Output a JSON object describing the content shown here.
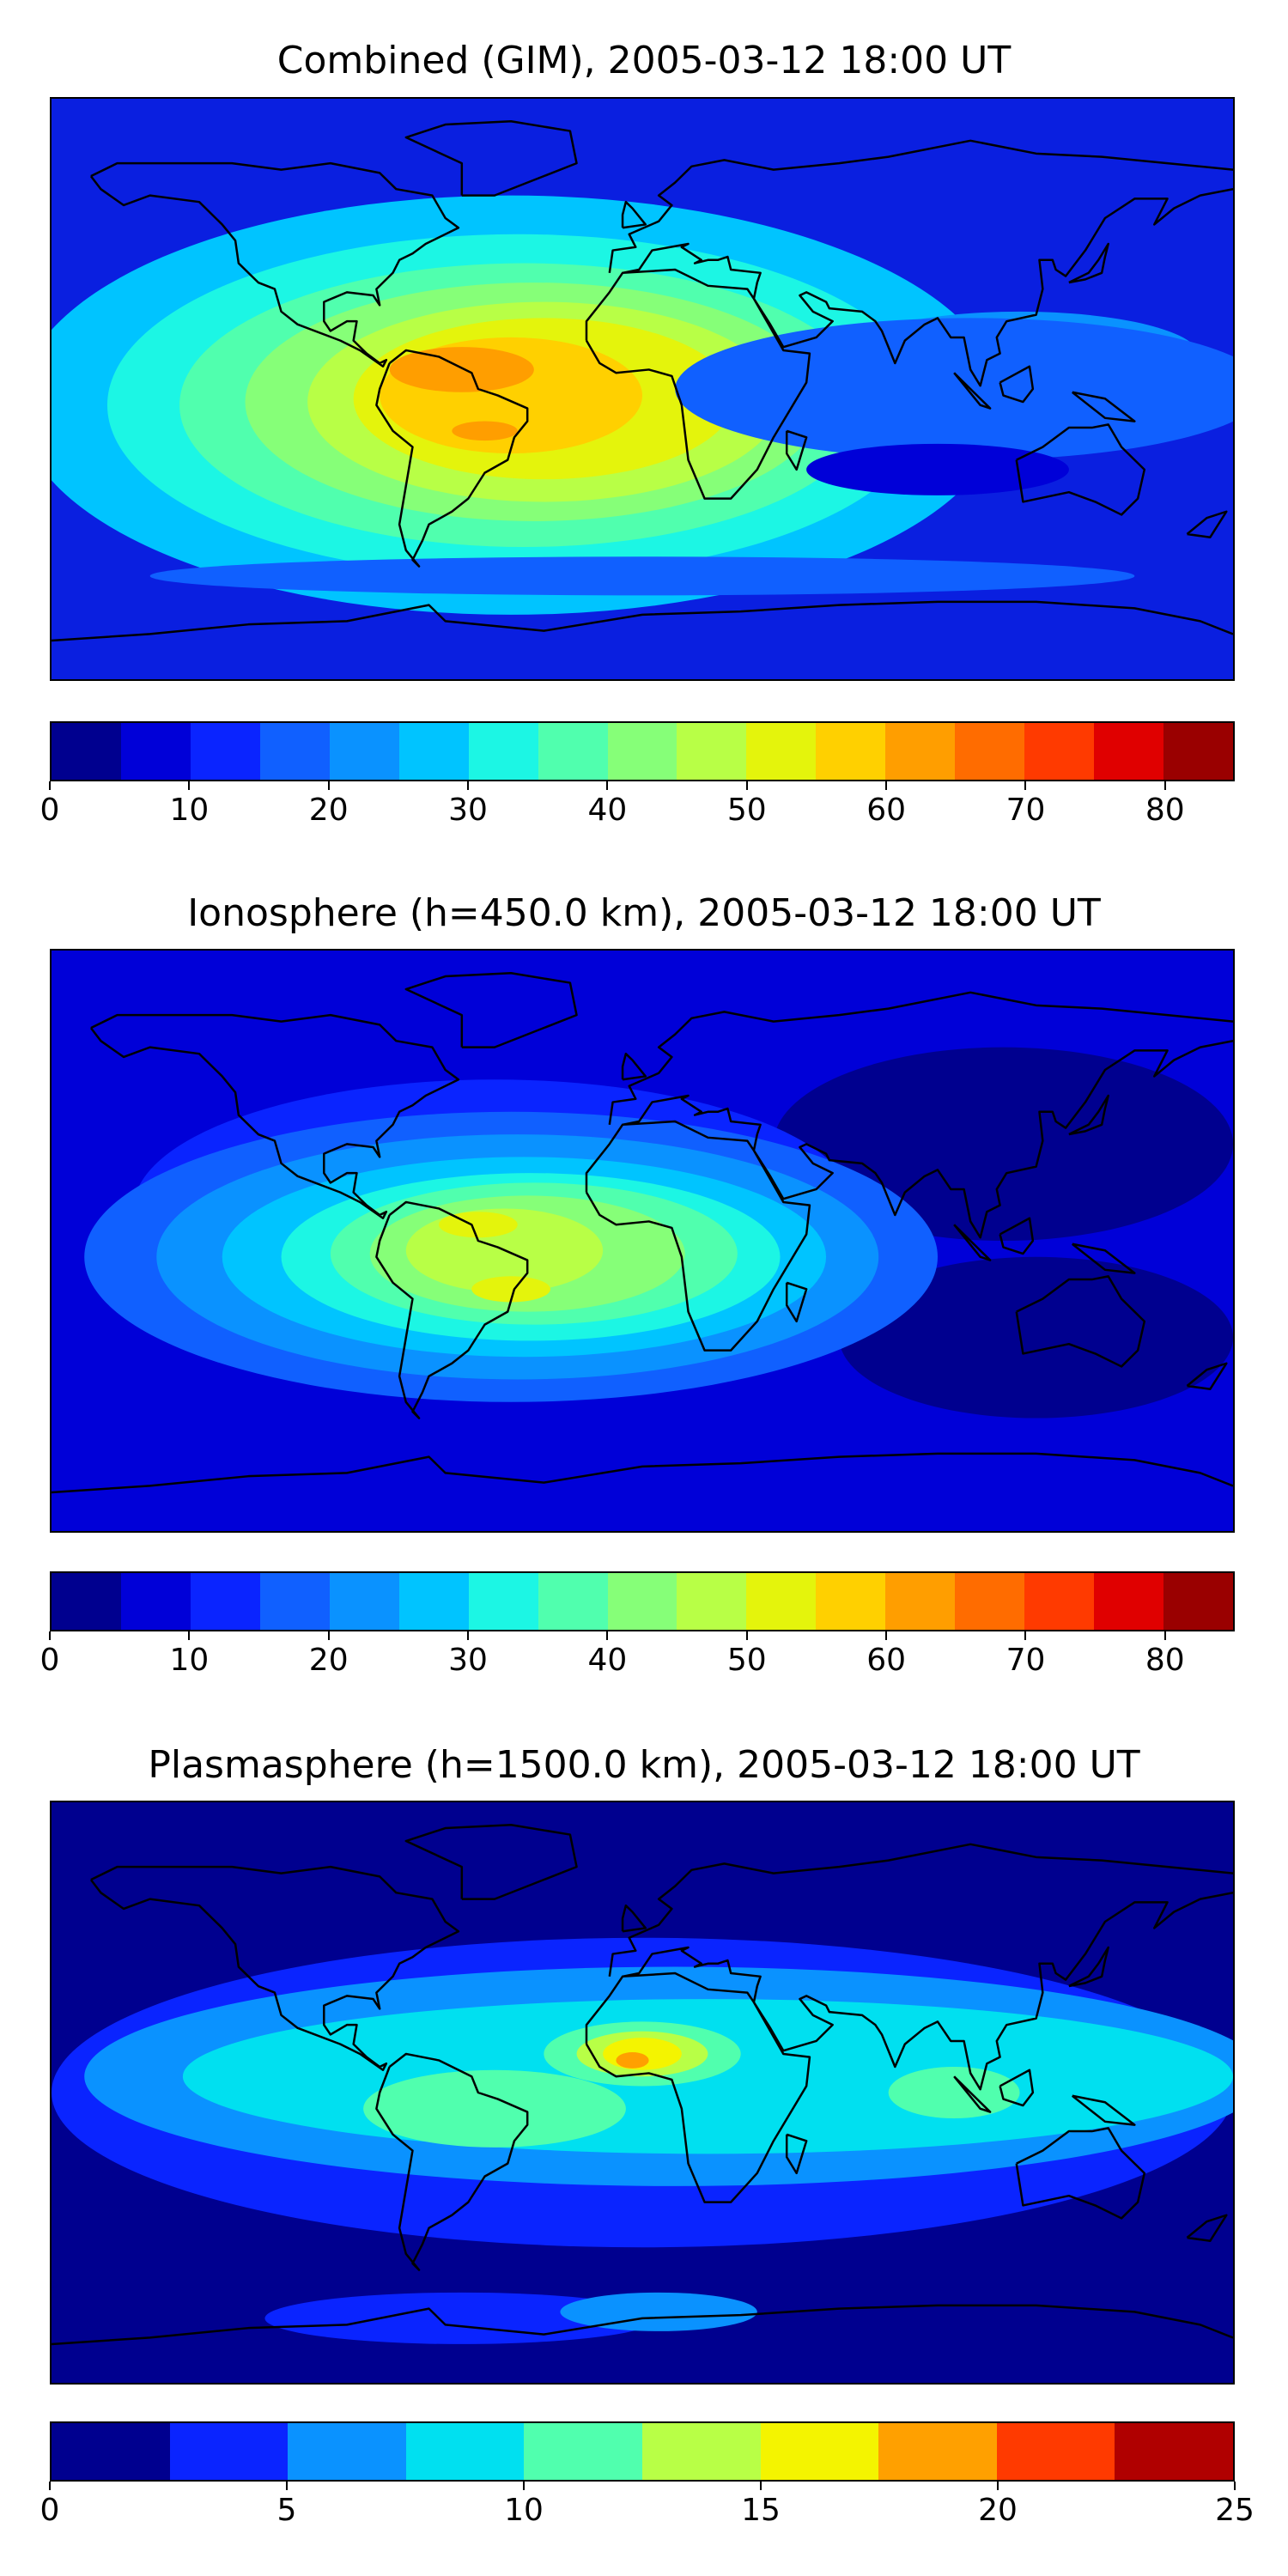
{
  "panels": [
    {
      "title": "Combined (GIM), 2005-03-12 18:00 UT",
      "background": "#0a1fe0",
      "colormap": [
        "#00008f",
        "#0000d8",
        "#0a24ff",
        "#1060ff",
        "#0a92ff",
        "#00c4ff",
        "#1cf6e4",
        "#50ffae",
        "#86ff78",
        "#b8ff46",
        "#e4f40c",
        "#ffd000",
        "#ff9e00",
        "#ff6c00",
        "#ff3a00",
        "#e00000",
        "#9a0000"
      ],
      "colorbar": {
        "min": 0,
        "max": 85,
        "ticks": [
          "0",
          "10",
          "20",
          "30",
          "40",
          "50",
          "60",
          "70",
          "80"
        ]
      },
      "blobs": [
        {
          "lon": -40,
          "lat": -5,
          "rx": 150,
          "ry": 65,
          "c": 5
        },
        {
          "lon": -38,
          "lat": -5,
          "rx": 125,
          "ry": 53,
          "c": 6
        },
        {
          "lon": -36,
          "lat": -5,
          "rx": 105,
          "ry": 44,
          "c": 7
        },
        {
          "lon": -33,
          "lat": -4,
          "rx": 88,
          "ry": 37,
          "c": 8
        },
        {
          "lon": -30,
          "lat": -4,
          "rx": 72,
          "ry": 31,
          "c": 9
        },
        {
          "lon": -30,
          "lat": -3,
          "rx": 58,
          "ry": 25,
          "c": 10
        },
        {
          "lon": -40,
          "lat": -2,
          "rx": 40,
          "ry": 18,
          "c": 11
        },
        {
          "lon": -55,
          "lat": 6,
          "rx": 22,
          "ry": 7,
          "c": 12
        },
        {
          "lon": -48,
          "lat": -13,
          "rx": 10,
          "ry": 3,
          "c": 12
        },
        {
          "lon": 115,
          "lat": 10,
          "rx": 55,
          "ry": 14,
          "c": 4
        },
        {
          "lon": 100,
          "lat": 0,
          "rx": 90,
          "ry": 22,
          "c": 3
        },
        {
          "lon": 0,
          "lat": -58,
          "rx": 150,
          "ry": 6,
          "c": 3
        },
        {
          "lon": 90,
          "lat": -25,
          "rx": 40,
          "ry": 8,
          "c": 1
        }
      ]
    },
    {
      "title": "Ionosphere  (h=450.0 km), 2005-03-12 18:00 UT",
      "background": "#0000d8",
      "colormap": [
        "#00008f",
        "#0000d8",
        "#0a24ff",
        "#1060ff",
        "#0a92ff",
        "#00c4ff",
        "#1cf6e4",
        "#50ffae",
        "#86ff78",
        "#b8ff46",
        "#e4f40c",
        "#ffd000",
        "#ff9e00",
        "#ff6c00",
        "#ff3a00",
        "#e00000",
        "#9a0000"
      ],
      "colorbar": {
        "min": 0,
        "max": 85,
        "ticks": [
          "0",
          "10",
          "20",
          "30",
          "40",
          "50",
          "60",
          "70",
          "80"
        ]
      },
      "blobs": [
        {
          "lon": 110,
          "lat": 30,
          "rx": 70,
          "ry": 30,
          "c": 0
        },
        {
          "lon": 120,
          "lat": -30,
          "rx": 60,
          "ry": 25,
          "c": 0
        },
        {
          "lon": -45,
          "lat": 10,
          "rx": 110,
          "ry": 40,
          "c": 2
        },
        {
          "lon": -40,
          "lat": -5,
          "rx": 130,
          "ry": 45,
          "c": 3
        },
        {
          "lon": -38,
          "lat": -5,
          "rx": 110,
          "ry": 38,
          "c": 4
        },
        {
          "lon": -36,
          "lat": -5,
          "rx": 92,
          "ry": 31,
          "c": 5
        },
        {
          "lon": -34,
          "lat": -5,
          "rx": 76,
          "ry": 26,
          "c": 6
        },
        {
          "lon": -33,
          "lat": -4,
          "rx": 62,
          "ry": 22,
          "c": 7
        },
        {
          "lon": -35,
          "lat": -4,
          "rx": 48,
          "ry": 18,
          "c": 8
        },
        {
          "lon": -42,
          "lat": -3,
          "rx": 30,
          "ry": 13,
          "c": 9
        },
        {
          "lon": -50,
          "lat": 5,
          "rx": 12,
          "ry": 4,
          "c": 10
        },
        {
          "lon": -40,
          "lat": -15,
          "rx": 12,
          "ry": 4,
          "c": 10
        }
      ]
    },
    {
      "title": "Plasmasphere (h=1500.0 km), 2005-03-12 18:00 UT",
      "background": "#00008f",
      "colormap": [
        "#00008f",
        "#0a24ff",
        "#0a92ff",
        "#00e0f0",
        "#50ffae",
        "#b8ff46",
        "#f4f400",
        "#ffa000",
        "#ff3a00",
        "#b00000"
      ],
      "colorbar": {
        "min": 0,
        "max": 25,
        "ticks": [
          "0",
          "5",
          "10",
          "15",
          "20",
          "25"
        ]
      },
      "blobs": [
        {
          "lon": 0,
          "lat": 0,
          "rx": 180,
          "ry": 48,
          "c": 1
        },
        {
          "lon": 10,
          "lat": 5,
          "rx": 180,
          "ry": 34,
          "c": 2
        },
        {
          "lon": 20,
          "lat": 5,
          "rx": 160,
          "ry": 24,
          "c": 3
        },
        {
          "lon": -45,
          "lat": -5,
          "rx": 40,
          "ry": 12,
          "c": 4
        },
        {
          "lon": 0,
          "lat": 12,
          "rx": 30,
          "ry": 10,
          "c": 4
        },
        {
          "lon": 95,
          "lat": 0,
          "rx": 20,
          "ry": 8,
          "c": 4
        },
        {
          "lon": 0,
          "lat": 12,
          "rx": 20,
          "ry": 7,
          "c": 5
        },
        {
          "lon": 0,
          "lat": 12,
          "rx": 12,
          "ry": 5,
          "c": 6
        },
        {
          "lon": -3,
          "lat": 10,
          "rx": 5,
          "ry": 2.5,
          "c": 7
        },
        {
          "lon": -55,
          "lat": -70,
          "rx": 60,
          "ry": 8,
          "c": 1
        },
        {
          "lon": 5,
          "lat": -68,
          "rx": 30,
          "ry": 6,
          "c": 2
        }
      ]
    }
  ]
}
